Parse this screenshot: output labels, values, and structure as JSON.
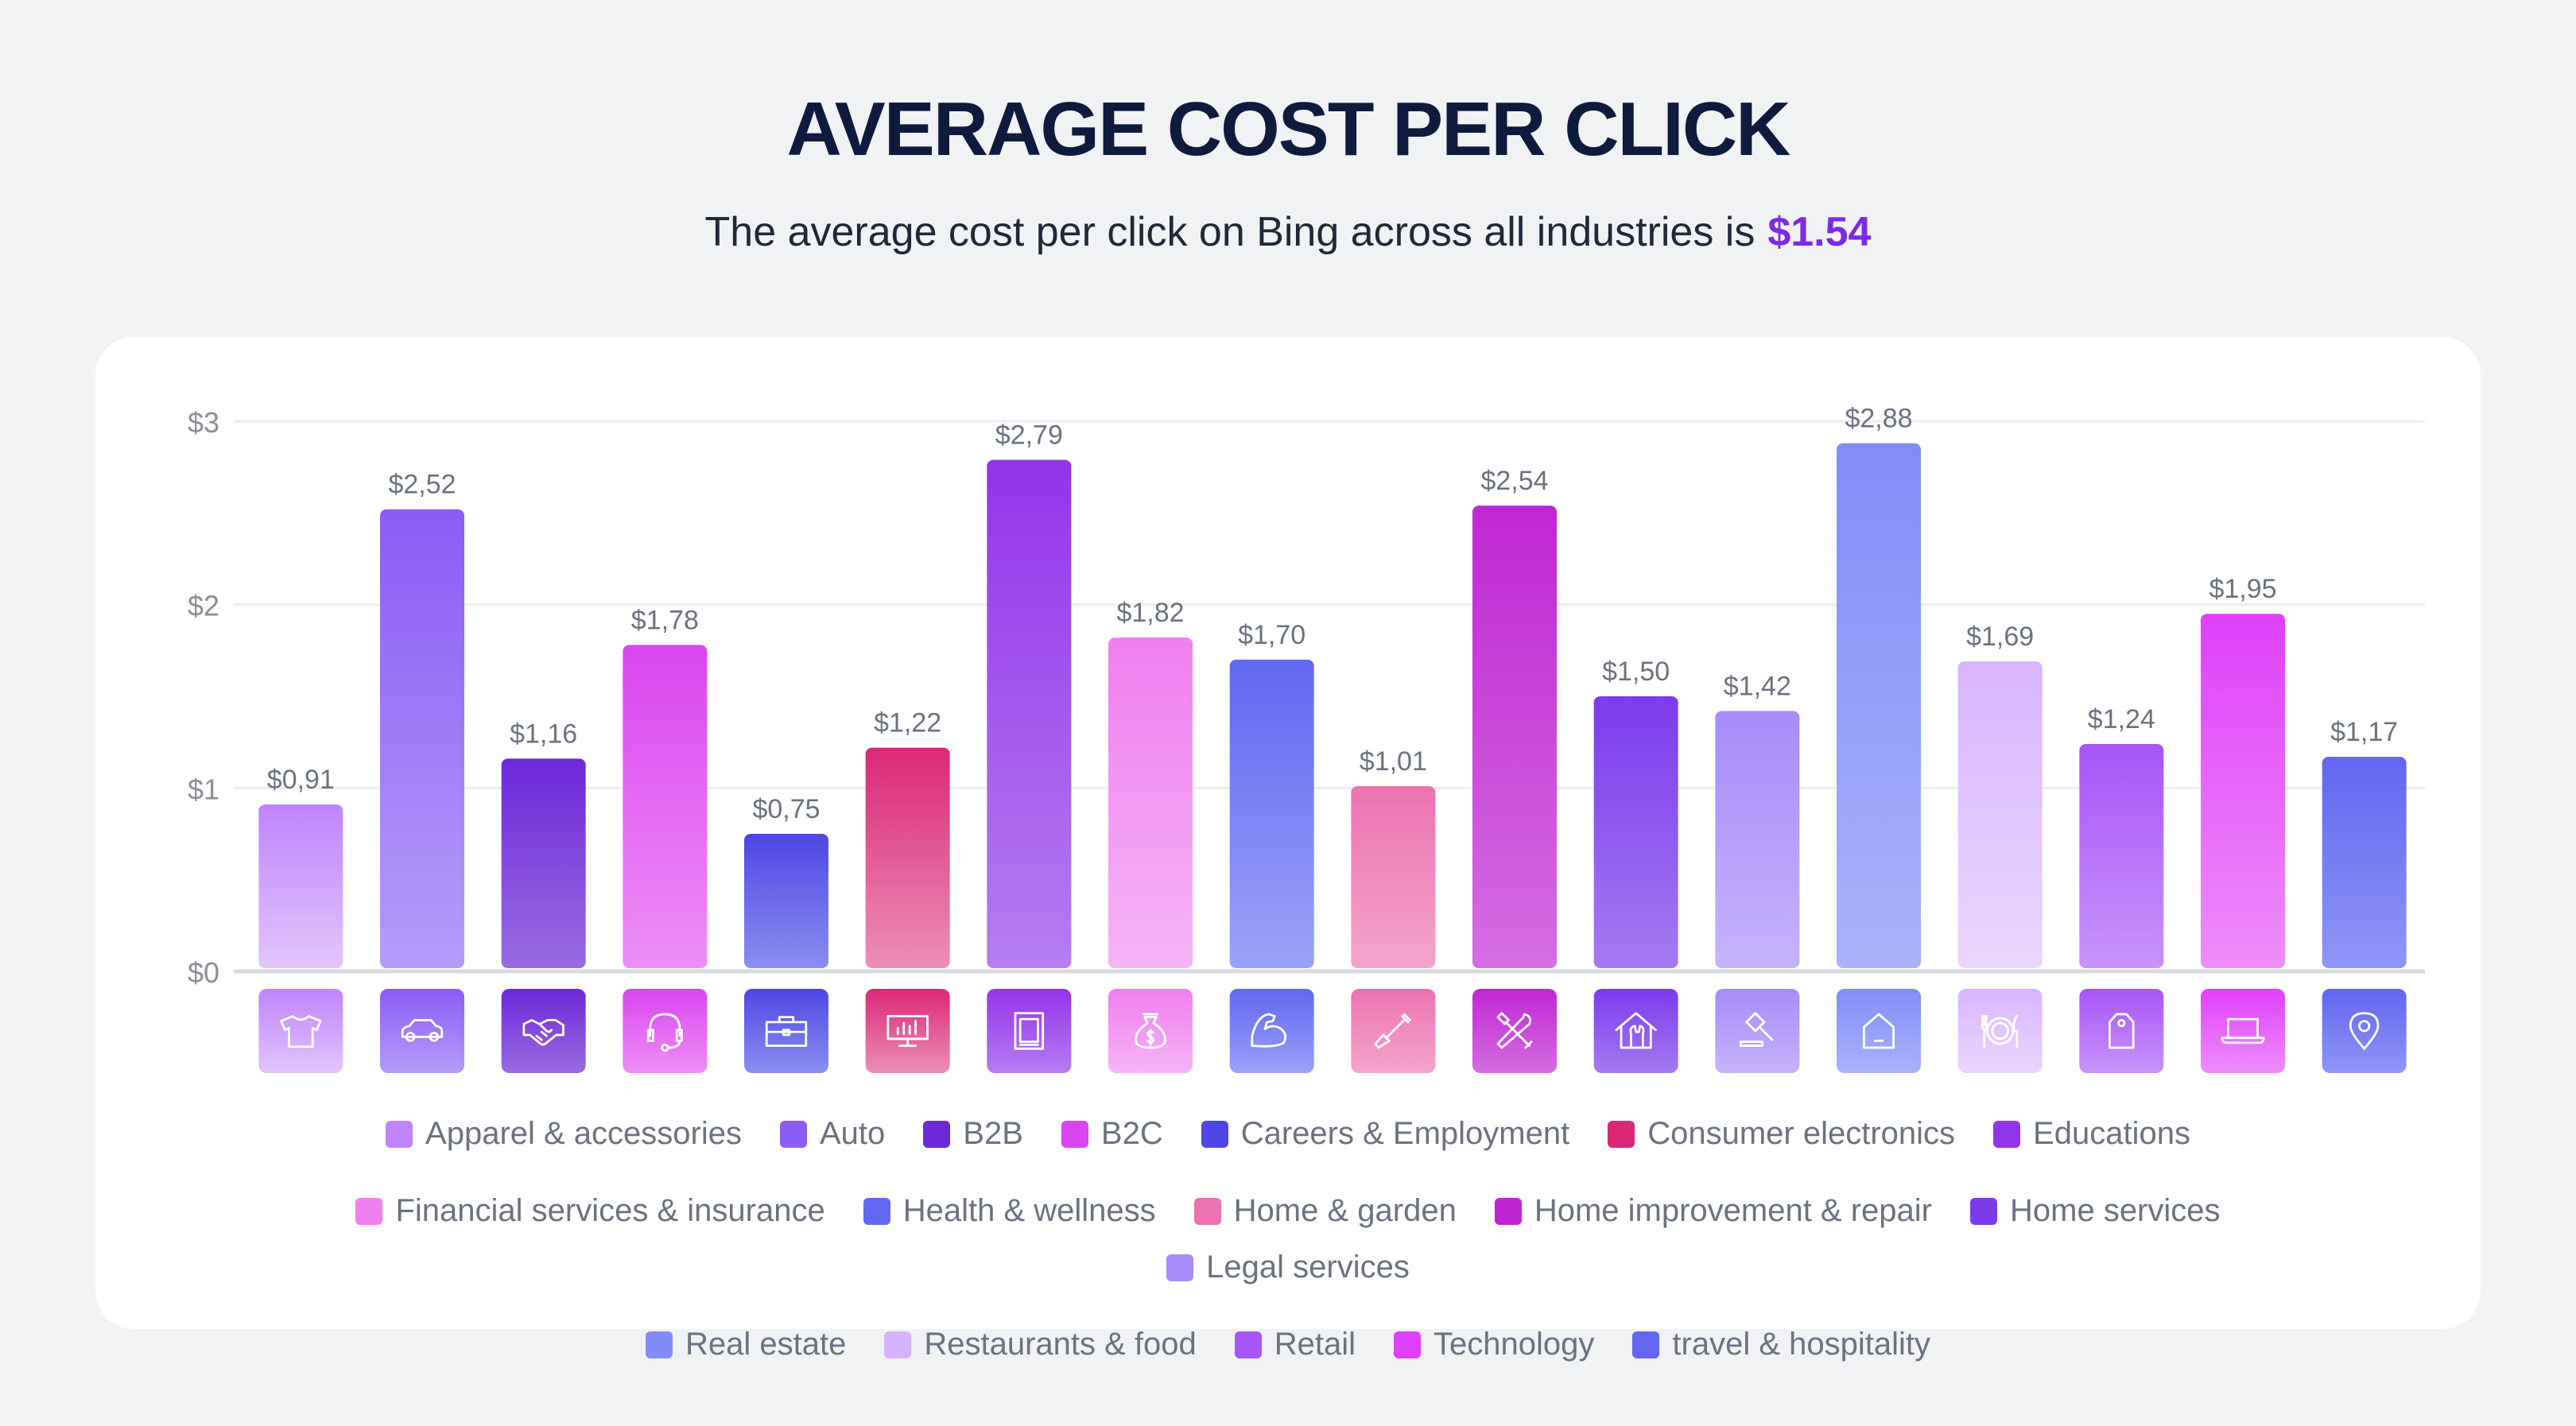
{
  "header": {
    "title": "AVERAGE COST PER CLICK",
    "subtitle": "The average cost per click on Bing across all industries is",
    "average_value": "$1.54"
  },
  "chart_data": {
    "type": "bar",
    "y_ticks": [
      "$0",
      "$1",
      "$2",
      "$3"
    ],
    "ylim": [
      0,
      3
    ],
    "grid": true,
    "legend_position": "bottom",
    "categories": [
      "Apparel & accessories",
      "Auto",
      "B2B",
      "B2C",
      "Careers & Employment",
      "Consumer electronics",
      "Educations",
      "Financial services & insurance",
      "Health & wellness",
      "Home & garden",
      "Home improvement & repair",
      "Home services",
      "Legal services",
      "Real estate",
      "Restaurants & food",
      "Retail",
      "Technology",
      "travel & hospitality"
    ],
    "values": [
      0.91,
      2.52,
      1.16,
      1.78,
      0.75,
      1.22,
      2.79,
      1.82,
      1.7,
      1.01,
      2.54,
      1.5,
      1.42,
      2.88,
      1.69,
      1.24,
      1.95,
      1.17
    ],
    "data_labels": [
      "$0,91",
      "$2,52",
      "$1,16",
      "$1,78",
      "$0,75",
      "$1,22",
      "$2,79",
      "$1,82",
      "$1,70",
      "$1,01",
      "$2,54",
      "$1,50",
      "$1,42",
      "$2,88",
      "$1,69",
      "$1,24",
      "$1,95",
      "$1,17"
    ],
    "colors": [
      [
        "#c084fc",
        "#e2c5fb"
      ],
      [
        "#8b5cf6",
        "#b59cf9"
      ],
      [
        "#6d28d9",
        "#9a6be0"
      ],
      [
        "#d946ef",
        "#ee8ef7"
      ],
      [
        "#4f46e5",
        "#8b8ff0"
      ],
      [
        "#db2777",
        "#ec8fb8"
      ],
      [
        "#9333ea",
        "#b67df1"
      ],
      [
        "#f07ff0",
        "#f5b4f6"
      ],
      [
        "#6366f1",
        "#9aa2f8"
      ],
      [
        "#ec72b0",
        "#f4a6cd"
      ],
      [
        "#c026d3",
        "#d56de2"
      ],
      [
        "#7c3aed",
        "#a57bf2"
      ],
      [
        "#a78bfa",
        "#c6b3fc"
      ],
      [
        "#818cf8",
        "#aab3fa"
      ],
      [
        "#d8b4fe",
        "#ead7fe"
      ],
      [
        "#a855f7",
        "#c893fa"
      ],
      [
        "#e040fb",
        "#ee8dfa"
      ],
      [
        "#6366f1",
        "#8f95f6"
      ]
    ],
    "icons": [
      "tshirt-icon",
      "car-icon",
      "handshake-icon",
      "headset-icon",
      "briefcase-icon",
      "monitor-chart-icon",
      "book-icon",
      "money-bag-icon",
      "arm-muscle-icon",
      "shovel-icon",
      "tools-icon",
      "house-wrench-icon",
      "gavel-icon",
      "house-icon",
      "plate-cutlery-icon",
      "price-tag-icon",
      "laptop-icon",
      "location-pin-icon"
    ]
  }
}
